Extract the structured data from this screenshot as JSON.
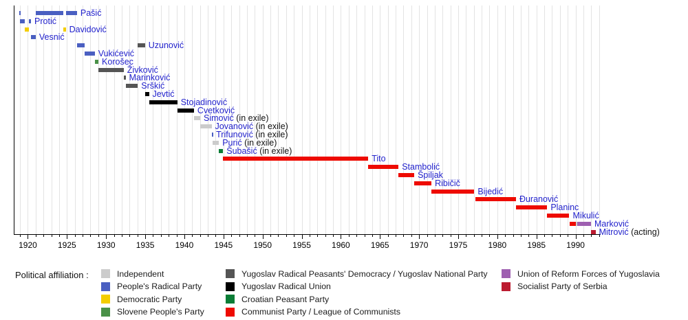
{
  "chart_data": {
    "type": "gantt-timeline",
    "x_axis": {
      "domain": [
        1918.2,
        1993.2
      ],
      "major_ticks": [
        1920,
        1925,
        1930,
        1935,
        1940,
        1945,
        1950,
        1955,
        1960,
        1965,
        1970,
        1975,
        1980,
        1985,
        1990
      ],
      "minor_tick_interval": 1,
      "gridline_interval": 1
    },
    "parties": {
      "independent": {
        "label": "Independent",
        "color": "#cccccc"
      },
      "peoples_radical": {
        "label": "People's Radical Party",
        "color": "#4a5fc1"
      },
      "democratic": {
        "label": "Democratic Party",
        "color": "#f3cd00"
      },
      "slovene_peoples": {
        "label": "Slovene People's Party",
        "color": "#4a9148"
      },
      "ynp": {
        "label": "Yugoslav Radical Peasants' Democracy / Yugoslav National Party",
        "color": "#555555"
      },
      "yru": {
        "label": "Yugoslav Radical Union",
        "color": "#000000"
      },
      "croatian_peasant": {
        "label": "Croatian Peasant Party",
        "color": "#0b7d36"
      },
      "communist": {
        "label": "Communist Party / League of Communists",
        "color": "#ee0b00"
      },
      "reform_forces": {
        "label": "Union of Reform Forces of Yugoslavia",
        "color": "#9e5fb0"
      },
      "socialist_serbia": {
        "label": "Socialist Party of Serbia",
        "color": "#bc1b30"
      }
    },
    "rows": [
      {
        "name": "Pašić",
        "suffix": "",
        "terms": [
          [
            1918.9,
            1919.1,
            "peoples_radical"
          ],
          [
            1921.0,
            1924.55,
            "peoples_radical"
          ],
          [
            1924.85,
            1926.28,
            "peoples_radical"
          ]
        ]
      },
      {
        "name": "Protić",
        "suffix": "",
        "terms": [
          [
            1918.97,
            1919.62,
            "peoples_radical"
          ],
          [
            1920.15,
            1920.4,
            "peoples_radical"
          ]
        ]
      },
      {
        "name": "Davidović",
        "suffix": "",
        "terms": [
          [
            1919.62,
            1920.12,
            "democratic"
          ],
          [
            1924.57,
            1924.85,
            "democratic"
          ]
        ]
      },
      {
        "name": "Vesnić",
        "suffix": "",
        "terms": [
          [
            1920.4,
            1921.0,
            "peoples_radical"
          ]
        ]
      },
      {
        "name": "Uzunović",
        "suffix": "",
        "terms": [
          [
            1926.28,
            1927.3,
            "peoples_radical"
          ],
          [
            1934.05,
            1934.97,
            "ynp"
          ]
        ]
      },
      {
        "name": "Vukićević",
        "suffix": "",
        "terms": [
          [
            1927.3,
            1928.55,
            "peoples_radical"
          ]
        ]
      },
      {
        "name": "Korošec",
        "suffix": "",
        "terms": [
          [
            1928.55,
            1929.02,
            "slovene_peoples"
          ]
        ]
      },
      {
        "name": "Živković",
        "suffix": "",
        "terms": [
          [
            1929.02,
            1932.25,
            "ynp"
          ]
        ]
      },
      {
        "name": "Marinković",
        "suffix": "",
        "terms": [
          [
            1932.25,
            1932.5,
            "ynp"
          ]
        ]
      },
      {
        "name": "Srškić",
        "suffix": "",
        "terms": [
          [
            1932.5,
            1934.05,
            "ynp"
          ]
        ]
      },
      {
        "name": "Jevtić",
        "suffix": "",
        "terms": [
          [
            1934.97,
            1935.48,
            "yru"
          ]
        ]
      },
      {
        "name": "Stojadinović",
        "suffix": "",
        "terms": [
          [
            1935.48,
            1939.1,
            "yru"
          ]
        ]
      },
      {
        "name": "Cvetković",
        "suffix": "",
        "terms": [
          [
            1939.1,
            1941.23,
            "yru"
          ]
        ]
      },
      {
        "name": "Simović",
        "suffix": " (in exile)",
        "terms": [
          [
            1941.23,
            1942.03,
            "independent"
          ]
        ]
      },
      {
        "name": "Jovanović",
        "suffix": " (in exile)",
        "terms": [
          [
            1942.03,
            1943.48,
            "independent"
          ]
        ]
      },
      {
        "name": "Trifunović",
        "suffix": " (in exile)",
        "terms": [
          [
            1943.48,
            1943.62,
            "peoples_radical"
          ]
        ]
      },
      {
        "name": "Purić",
        "suffix": " (in exile)",
        "terms": [
          [
            1943.62,
            1944.42,
            "independent"
          ]
        ]
      },
      {
        "name": "Šubašić",
        "suffix": " (in exile)",
        "terms": [
          [
            1944.42,
            1944.95,
            "croatian_peasant"
          ]
        ]
      },
      {
        "name": "Tito",
        "suffix": "",
        "terms": [
          [
            1944.95,
            1963.5,
            "communist"
          ]
        ]
      },
      {
        "name": "Stambolić",
        "suffix": "",
        "terms": [
          [
            1963.5,
            1967.37,
            "communist"
          ]
        ]
      },
      {
        "name": "Špiljak",
        "suffix": "",
        "terms": [
          [
            1967.37,
            1969.38,
            "communist"
          ]
        ]
      },
      {
        "name": "Ribičič",
        "suffix": "",
        "terms": [
          [
            1969.38,
            1971.58,
            "communist"
          ]
        ]
      },
      {
        "name": "Bijedić",
        "suffix": "",
        "terms": [
          [
            1971.58,
            1977.05,
            "communist"
          ]
        ]
      },
      {
        "name": "Đuranović",
        "suffix": "",
        "terms": [
          [
            1977.2,
            1982.38,
            "communist"
          ]
        ]
      },
      {
        "name": "Planinc",
        "suffix": "",
        "terms": [
          [
            1982.38,
            1986.37,
            "communist"
          ]
        ]
      },
      {
        "name": "Mikulić",
        "suffix": "",
        "terms": [
          [
            1986.37,
            1989.2,
            "communist"
          ]
        ]
      },
      {
        "name": "Marković",
        "suffix": "",
        "terms": [
          [
            1989.2,
            1990.0,
            "communist"
          ],
          [
            1990.0,
            1990.25,
            "independent"
          ],
          [
            1990.25,
            1991.97,
            "reform_forces"
          ]
        ]
      },
      {
        "name": "Mitrović",
        "suffix": " (acting)",
        "terms": [
          [
            1991.97,
            1992.55,
            "socialist_serbia"
          ]
        ]
      }
    ]
  },
  "legend": {
    "title": "Political affiliation :",
    "columns": [
      [
        "independent",
        "peoples_radical",
        "democratic",
        "slovene_peoples"
      ],
      [
        "ynp",
        "yru",
        "croatian_peasant",
        "communist"
      ],
      [
        "reform_forces",
        "socialist_serbia"
      ]
    ]
  },
  "style_colors": {
    "pm_name_blue": "#2222cc",
    "gridline": "#e3e3e3",
    "axis": "#000000"
  }
}
